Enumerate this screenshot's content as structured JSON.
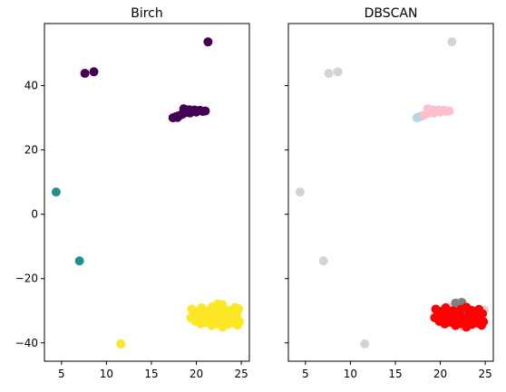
{
  "chart_data": [
    {
      "type": "scatter",
      "title": "Birch",
      "xlabel": "",
      "ylabel": "",
      "xlim": [
        3.1,
        25.9
      ],
      "ylim": [
        -45.7,
        59.3
      ],
      "xticks": [
        5,
        10,
        15,
        20,
        25
      ],
      "yticks": [
        -40,
        -20,
        0,
        20,
        40
      ],
      "ytick_labels_visible": true,
      "grid": false,
      "legend": "none",
      "groups": [
        {
          "color": "#440154",
          "points": [
            [
              21.3,
              53.6
            ],
            [
              7.6,
              43.8
            ],
            [
              8.6,
              44.3
            ],
            [
              17.4,
              30.0
            ],
            [
              17.7,
              30.3
            ],
            [
              18.0,
              30.6
            ],
            [
              18.3,
              30.9
            ],
            [
              18.5,
              31.2
            ],
            [
              18.8,
              31.6
            ],
            [
              19.0,
              32.0
            ],
            [
              19.2,
              32.5
            ],
            [
              19.5,
              32.2
            ],
            [
              19.8,
              32.4
            ],
            [
              20.1,
              32.1
            ],
            [
              20.4,
              32.3
            ],
            [
              20.7,
              32.0
            ],
            [
              21.0,
              32.1
            ],
            [
              18.6,
              32.8
            ],
            [
              19.3,
              31.5
            ],
            [
              20.0,
              31.8
            ],
            [
              17.9,
              30.1
            ]
          ]
        },
        {
          "color": "#21918c",
          "points": [
            [
              4.4,
              6.9
            ],
            [
              7.0,
              -14.5
            ]
          ]
        },
        {
          "color": "#fde725",
          "points": [
            [
              11.6,
              -40.3
            ],
            [
              19.5,
              -29.5
            ],
            [
              20.0,
              -30.2
            ],
            [
              20.6,
              -29.1
            ],
            [
              21.2,
              -30.8
            ],
            [
              21.8,
              -28.7
            ],
            [
              22.3,
              -29.6
            ],
            [
              22.9,
              -28.1
            ],
            [
              23.5,
              -29.9
            ],
            [
              24.1,
              -30.6
            ],
            [
              24.7,
              -29.4
            ],
            [
              19.7,
              -31.6
            ],
            [
              20.3,
              -32.3
            ],
            [
              20.9,
              -31.4
            ],
            [
              21.5,
              -32.8
            ],
            [
              22.1,
              -31.9
            ],
            [
              22.7,
              -33.2
            ],
            [
              23.3,
              -31.7
            ],
            [
              23.9,
              -32.5
            ],
            [
              24.5,
              -31.3
            ],
            [
              24.8,
              -33.4
            ],
            [
              19.9,
              -33.3
            ],
            [
              20.5,
              -34.1
            ],
            [
              21.1,
              -33.6
            ],
            [
              21.7,
              -34.6
            ],
            [
              22.3,
              -34.0
            ],
            [
              22.9,
              -35.1
            ],
            [
              23.5,
              -34.3
            ],
            [
              24.1,
              -33.8
            ],
            [
              24.6,
              -34.5
            ],
            [
              21.4,
              -30.0
            ],
            [
              22.0,
              -31.1
            ],
            [
              22.6,
              -32.1
            ],
            [
              23.2,
              -30.4
            ],
            [
              23.8,
              -31.0
            ],
            [
              20.8,
              -30.6
            ],
            [
              21.9,
              -33.1
            ],
            [
              23.0,
              -33.7
            ],
            [
              22.4,
              -27.9
            ],
            [
              19.4,
              -32.2
            ],
            [
              24.3,
              -29.0
            ]
          ]
        }
      ]
    },
    {
      "type": "scatter",
      "title": "DBSCAN",
      "xlabel": "",
      "ylabel": "",
      "xlim": [
        3.1,
        25.9
      ],
      "ylim": [
        -45.7,
        59.3
      ],
      "xticks": [
        5,
        10,
        15,
        20,
        25
      ],
      "yticks": [
        -40,
        -20,
        0,
        20,
        40
      ],
      "ytick_labels_visible": false,
      "grid": false,
      "legend": "none",
      "groups": [
        {
          "color": "#d3d3d3",
          "points": [
            [
              21.3,
              53.6
            ],
            [
              7.6,
              43.8
            ],
            [
              8.6,
              44.3
            ],
            [
              4.4,
              6.9
            ],
            [
              7.0,
              -14.5
            ],
            [
              11.6,
              -40.3
            ],
            [
              19.3,
              -31.8
            ],
            [
              24.9,
              -29.8
            ],
            [
              22.4,
              -34.9
            ],
            [
              20.8,
              -28.8
            ]
          ]
        },
        {
          "color": "#add8e6",
          "points": [
            [
              17.4,
              30.0
            ],
            [
              17.6,
              30.2
            ],
            [
              17.9,
              30.5
            ]
          ]
        },
        {
          "color": "#ffc0cb",
          "points": [
            [
              18.2,
              30.8
            ],
            [
              18.5,
              31.2
            ],
            [
              18.8,
              31.6
            ],
            [
              19.0,
              32.0
            ],
            [
              19.2,
              32.5
            ],
            [
              19.5,
              32.2
            ],
            [
              19.8,
              32.4
            ],
            [
              20.1,
              32.1
            ],
            [
              20.4,
              32.3
            ],
            [
              20.7,
              32.0
            ],
            [
              21.0,
              32.1
            ],
            [
              18.6,
              32.8
            ],
            [
              19.3,
              31.5
            ],
            [
              20.0,
              31.8
            ]
          ]
        },
        {
          "color": "#808080",
          "points": [
            [
              21.7,
              -27.6
            ],
            [
              22.4,
              -27.4
            ],
            [
              22.0,
              -28.2
            ]
          ]
        },
        {
          "color": "#ff0000",
          "points": [
            [
              19.5,
              -29.5
            ],
            [
              20.0,
              -30.2
            ],
            [
              20.6,
              -29.1
            ],
            [
              21.2,
              -30.8
            ],
            [
              22.3,
              -29.6
            ],
            [
              22.9,
              -28.9
            ],
            [
              23.5,
              -29.9
            ],
            [
              24.1,
              -30.6
            ],
            [
              24.7,
              -30.9
            ],
            [
              19.7,
              -31.6
            ],
            [
              20.3,
              -32.3
            ],
            [
              20.9,
              -31.4
            ],
            [
              21.5,
              -32.8
            ],
            [
              22.1,
              -31.9
            ],
            [
              22.7,
              -33.2
            ],
            [
              23.3,
              -31.7
            ],
            [
              23.9,
              -32.5
            ],
            [
              24.5,
              -31.3
            ],
            [
              24.8,
              -33.4
            ],
            [
              19.9,
              -33.3
            ],
            [
              20.5,
              -34.1
            ],
            [
              21.1,
              -33.6
            ],
            [
              21.7,
              -34.6
            ],
            [
              22.3,
              -34.0
            ],
            [
              22.9,
              -35.1
            ],
            [
              23.5,
              -34.3
            ],
            [
              24.1,
              -33.8
            ],
            [
              24.6,
              -34.5
            ],
            [
              21.4,
              -30.0
            ],
            [
              22.0,
              -31.1
            ],
            [
              22.6,
              -32.1
            ],
            [
              23.2,
              -30.4
            ],
            [
              23.8,
              -31.0
            ],
            [
              21.9,
              -33.1
            ],
            [
              23.0,
              -33.7
            ],
            [
              19.4,
              -32.2
            ],
            [
              24.3,
              -29.6
            ]
          ]
        }
      ]
    }
  ]
}
